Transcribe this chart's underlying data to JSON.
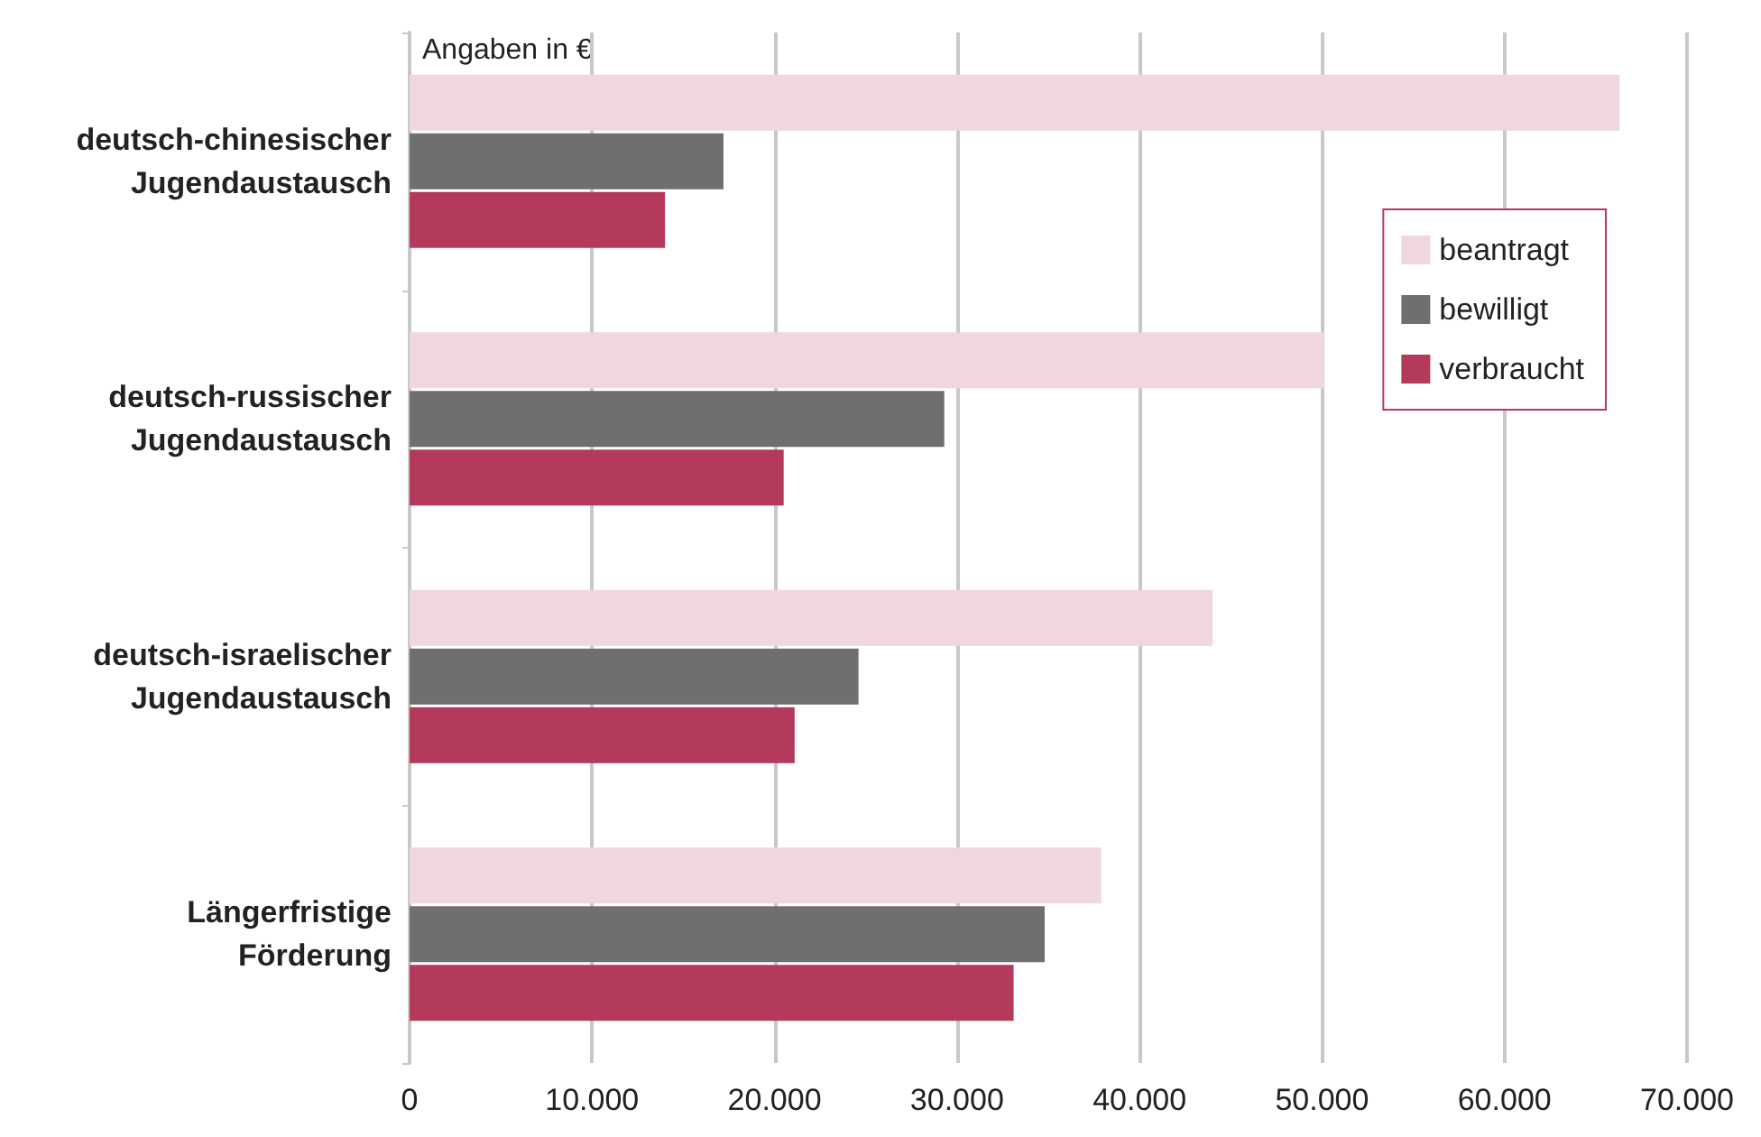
{
  "chart_data": {
    "type": "bar",
    "orientation": "horizontal",
    "categories": [
      "deutsch-chinesischer\nJugendaustausch",
      "deutsch-russischer\nJugendaustausch",
      "deutsch-israelischer\nJugendaustausch",
      "Längerfristige\nFörderung"
    ],
    "series": [
      {
        "name": "beantragt",
        "color": "#f0d6de",
        "values": [
          66300,
          50100,
          44000,
          37900
        ]
      },
      {
        "name": "bewilligt",
        "color": "#6f6f6f",
        "values": [
          17200,
          29300,
          24600,
          34800
        ]
      },
      {
        "name": "verbraucht",
        "color": "#b43a5c",
        "values": [
          14000,
          20500,
          21100,
          33100
        ]
      }
    ],
    "xlim": [
      0,
      70000
    ],
    "xticks": [
      0,
      {
        "value": 10000,
        "label": "10.000"
      },
      {
        "value": 20000,
        "label": "20.000"
      },
      {
        "value": 30000,
        "label": "30.000"
      },
      {
        "value": 40000,
        "label": "40.000"
      },
      {
        "value": 50000,
        "label": "50.000"
      },
      {
        "value": 60000,
        "label": "60.000"
      },
      {
        "value": 70000,
        "label": "70.000"
      }
    ],
    "grid": "x",
    "legend": "right",
    "annotations": [
      "Angaben in €"
    ]
  }
}
